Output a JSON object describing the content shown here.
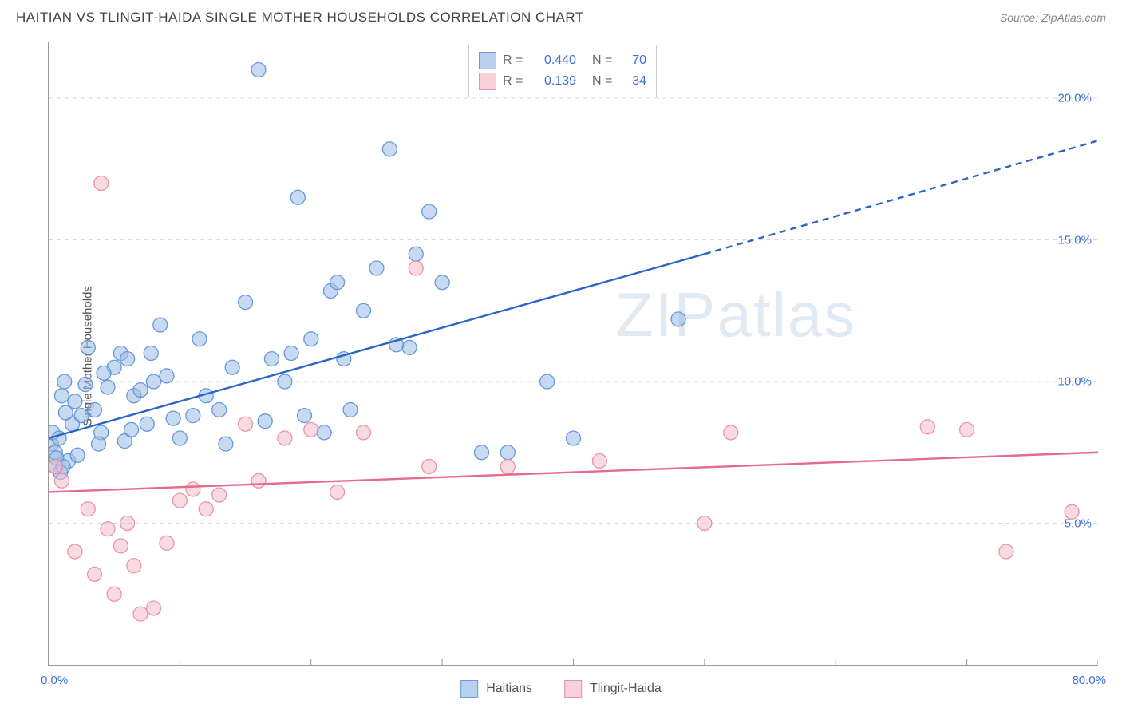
{
  "title": "HAITIAN VS TLINGIT-HAIDA SINGLE MOTHER HOUSEHOLDS CORRELATION CHART",
  "source": "Source: ZipAtlas.com",
  "ylabel": "Single Mother Households",
  "watermark_a": "ZIP",
  "watermark_b": "atlas",
  "chart": {
    "type": "scatter",
    "xlim": [
      0,
      80
    ],
    "ylim": [
      0,
      22
    ],
    "x_ticks_major": [
      0,
      10,
      20,
      30,
      40,
      50,
      60,
      70,
      80
    ],
    "x_tick_labels": {
      "0": "0.0%",
      "80": "80.0%"
    },
    "y_grid": [
      5,
      10,
      15,
      20
    ],
    "y_tick_labels": {
      "5": "5.0%",
      "10": "10.0%",
      "15": "15.0%",
      "20": "20.0%"
    },
    "grid_color": "#d8d8d8",
    "grid_dash": "5,5",
    "tick_color": "#999999",
    "background_color": "#ffffff",
    "axis_label_color": "#3d6fd6",
    "marker_radius": 9,
    "marker_opacity": 0.55,
    "marker_stroke_width": 1.3,
    "trend_line_width": 2.4,
    "series": [
      {
        "name": "Haitians",
        "fill": "#9bbce8",
        "stroke": "#5a8fd6",
        "swatch_fill": "#b9d1ef",
        "swatch_border": "#6b9cd8",
        "trend_color": "#2b64c7",
        "trend_solid": [
          [
            0,
            8.0
          ],
          [
            50,
            14.5
          ]
        ],
        "trend_dashed": [
          [
            50,
            14.5
          ],
          [
            80,
            18.5
          ]
        ],
        "R": "0.440",
        "N": "70",
        "points": [
          [
            0.2,
            7.8
          ],
          [
            0.3,
            8.2
          ],
          [
            0.5,
            7.5
          ],
          [
            0.8,
            8.0
          ],
          [
            1.0,
            9.5
          ],
          [
            1.2,
            10.0
          ],
          [
            1.5,
            7.2
          ],
          [
            1.8,
            8.5
          ],
          [
            0.5,
            7.0
          ],
          [
            0.6,
            7.3
          ],
          [
            0.9,
            6.8
          ],
          [
            1.1,
            7.0
          ],
          [
            2.0,
            9.3
          ],
          [
            2.5,
            8.8
          ],
          [
            3.0,
            11.2
          ],
          [
            3.5,
            9.0
          ],
          [
            4.0,
            8.2
          ],
          [
            4.5,
            9.8
          ],
          [
            5.0,
            10.5
          ],
          [
            5.5,
            11.0
          ],
          [
            6.0,
            10.8
          ],
          [
            6.5,
            9.5
          ],
          [
            7.0,
            9.7
          ],
          [
            7.5,
            8.5
          ],
          [
            8.0,
            10.0
          ],
          [
            8.5,
            12.0
          ],
          [
            9.0,
            10.2
          ],
          [
            10.0,
            8.0
          ],
          [
            11.0,
            8.8
          ],
          [
            12.0,
            9.5
          ],
          [
            13.0,
            9.0
          ],
          [
            14.0,
            10.5
          ],
          [
            15.0,
            12.8
          ],
          [
            16.0,
            21.0
          ],
          [
            17.0,
            10.8
          ],
          [
            18.0,
            10.0
          ],
          [
            19.0,
            16.5
          ],
          [
            20.0,
            11.5
          ],
          [
            21.0,
            8.2
          ],
          [
            21.5,
            13.2
          ],
          [
            22.0,
            13.5
          ],
          [
            23.0,
            9.0
          ],
          [
            24.0,
            12.5
          ],
          [
            25.0,
            14.0
          ],
          [
            26.0,
            18.2
          ],
          [
            27.5,
            11.2
          ],
          [
            28.0,
            14.5
          ],
          [
            29.0,
            16.0
          ],
          [
            30.0,
            13.5
          ],
          [
            33.0,
            7.5
          ],
          [
            35.0,
            7.5
          ],
          [
            38.0,
            10.0
          ],
          [
            40.0,
            8.0
          ],
          [
            48.0,
            12.2
          ],
          [
            2.2,
            7.4
          ],
          [
            3.8,
            7.8
          ],
          [
            1.3,
            8.9
          ],
          [
            2.8,
            9.9
          ],
          [
            4.2,
            10.3
          ],
          [
            5.8,
            7.9
          ],
          [
            6.3,
            8.3
          ],
          [
            7.8,
            11.0
          ],
          [
            9.5,
            8.7
          ],
          [
            11.5,
            11.5
          ],
          [
            13.5,
            7.8
          ],
          [
            16.5,
            8.6
          ],
          [
            18.5,
            11.0
          ],
          [
            22.5,
            10.8
          ],
          [
            26.5,
            11.3
          ],
          [
            19.5,
            8.8
          ]
        ]
      },
      {
        "name": "Tlingit-Haida",
        "fill": "#f3bcc9",
        "stroke": "#e88aa3",
        "swatch_fill": "#f7d0da",
        "swatch_border": "#e890a8",
        "trend_color": "#e66a8e",
        "trend_solid": [
          [
            0,
            6.1
          ],
          [
            80,
            7.5
          ]
        ],
        "trend_dashed": null,
        "R": "0.139",
        "N": "34",
        "points": [
          [
            0.5,
            7.0
          ],
          [
            1.0,
            6.5
          ],
          [
            2.0,
            4.0
          ],
          [
            3.0,
            5.5
          ],
          [
            3.5,
            3.2
          ],
          [
            4.0,
            17.0
          ],
          [
            4.5,
            4.8
          ],
          [
            5.0,
            2.5
          ],
          [
            5.5,
            4.2
          ],
          [
            6.0,
            5.0
          ],
          [
            7.0,
            1.8
          ],
          [
            8.0,
            2.0
          ],
          [
            9.0,
            4.3
          ],
          [
            10.0,
            5.8
          ],
          [
            11.0,
            6.2
          ],
          [
            12.0,
            5.5
          ],
          [
            13.0,
            6.0
          ],
          [
            15.0,
            8.5
          ],
          [
            16.0,
            6.5
          ],
          [
            18.0,
            8.0
          ],
          [
            20.0,
            8.3
          ],
          [
            22.0,
            6.1
          ],
          [
            24.0,
            8.2
          ],
          [
            28.0,
            14.0
          ],
          [
            29.0,
            7.0
          ],
          [
            35.0,
            7.0
          ],
          [
            42.0,
            7.2
          ],
          [
            50.0,
            5.0
          ],
          [
            52.0,
            8.2
          ],
          [
            67.0,
            8.4
          ],
          [
            70.0,
            8.3
          ],
          [
            73.0,
            4.0
          ],
          [
            78.0,
            5.4
          ],
          [
            6.5,
            3.5
          ]
        ]
      }
    ]
  },
  "legend": {
    "r_label": "R =",
    "n_label": "N ="
  }
}
